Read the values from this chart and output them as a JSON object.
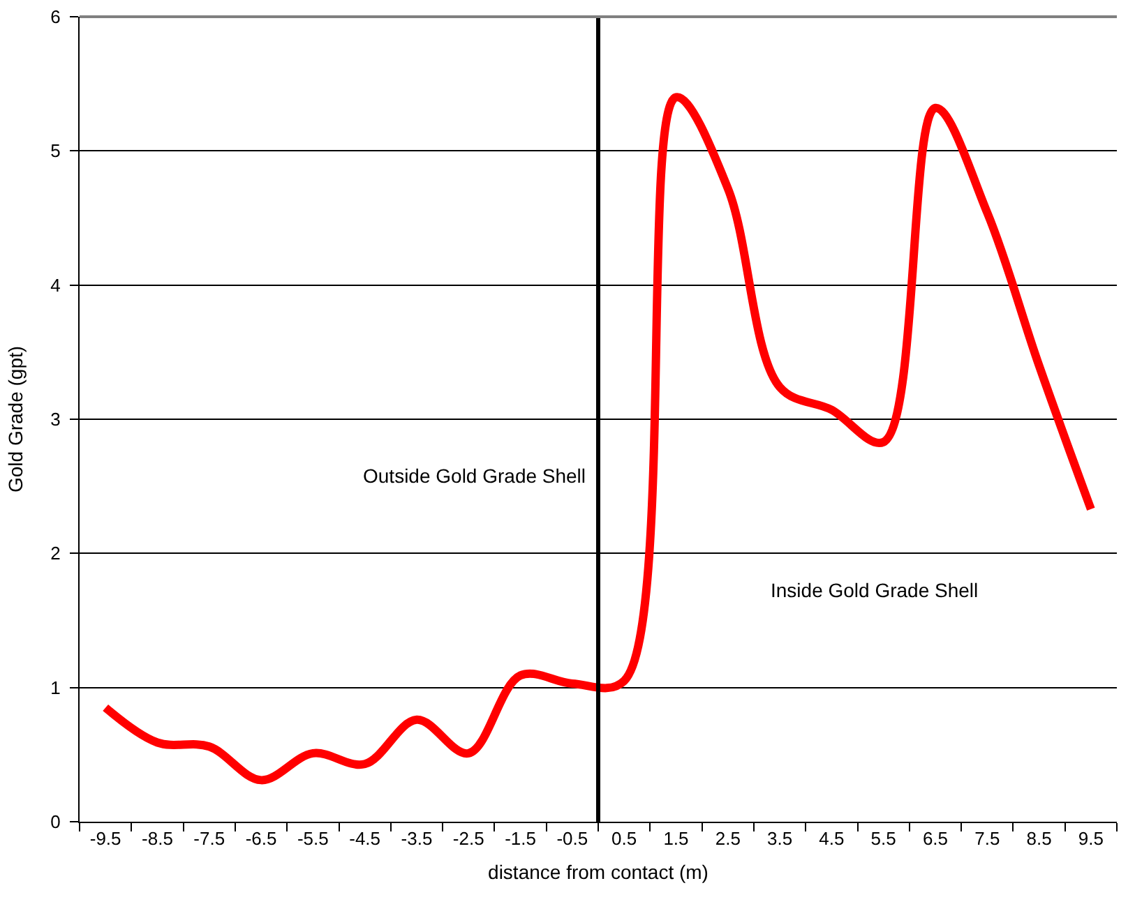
{
  "chart_data": {
    "type": "line",
    "xlabel": "distance from contact (m)",
    "ylabel": "Gold Grade (gpt)",
    "x": [
      -9.5,
      -8.5,
      -7.5,
      -6.5,
      -5.5,
      -4.5,
      -3.5,
      -2.5,
      -1.5,
      -0.5,
      0.5,
      1.5,
      2.5,
      3.5,
      4.5,
      5.5,
      6.5,
      7.5,
      8.5,
      9.5
    ],
    "series": [
      {
        "color": "#ff0000",
        "values": [
          0.85,
          0.59,
          0.56,
          0.31,
          0.51,
          0.43,
          0.76,
          0.51,
          1.09,
          1.03,
          1.05,
          5.4,
          4.72,
          3.24,
          3.07,
          2.83,
          5.32,
          4.54,
          3.4,
          2.33
        ]
      }
    ],
    "xlim": [
      -10,
      10
    ],
    "xticks": [
      -9.5,
      -8.5,
      -7.5,
      -6.5,
      -5.5,
      -4.5,
      -3.5,
      -2.5,
      -1.5,
      -0.5,
      0.5,
      1.5,
      2.5,
      3.5,
      4.5,
      5.5,
      6.5,
      7.5,
      8.5,
      9.5,
      {
        "value": -10,
        "label": null
      },
      {
        "value": -9,
        "label": null
      },
      {
        "value": -8,
        "label": null
      },
      {
        "value": -7,
        "label": null
      },
      {
        "value": -6,
        "label": null
      },
      {
        "value": -5,
        "label": null
      },
      {
        "value": -4,
        "label": null
      },
      {
        "value": -3,
        "label": null
      },
      {
        "value": -2,
        "label": null
      },
      {
        "value": -1,
        "label": null
      },
      {
        "value": 0,
        "label": null
      },
      {
        "value": 1,
        "label": null
      },
      {
        "value": 2,
        "label": null
      },
      {
        "value": 3,
        "label": null
      },
      {
        "value": 4,
        "label": null
      },
      {
        "value": 5,
        "label": null
      },
      {
        "value": 6,
        "label": null
      },
      {
        "value": 7,
        "label": null
      },
      {
        "value": 8,
        "label": null
      },
      {
        "value": 9,
        "label": null
      },
      {
        "value": 10,
        "label": null
      }
    ],
    "ylim": [
      0,
      6
    ],
    "yticks": [
      0,
      1,
      2,
      3,
      4,
      5,
      6
    ],
    "grid": "y",
    "ref_lines": [
      {
        "axis": "x",
        "value": 0,
        "color": "#000000"
      }
    ],
    "annotations": [
      "Outside Gold Grade Shell",
      "Inside Gold Grade Shell"
    ],
    "legend": false,
    "marker": "none",
    "line_style": "solid"
  }
}
